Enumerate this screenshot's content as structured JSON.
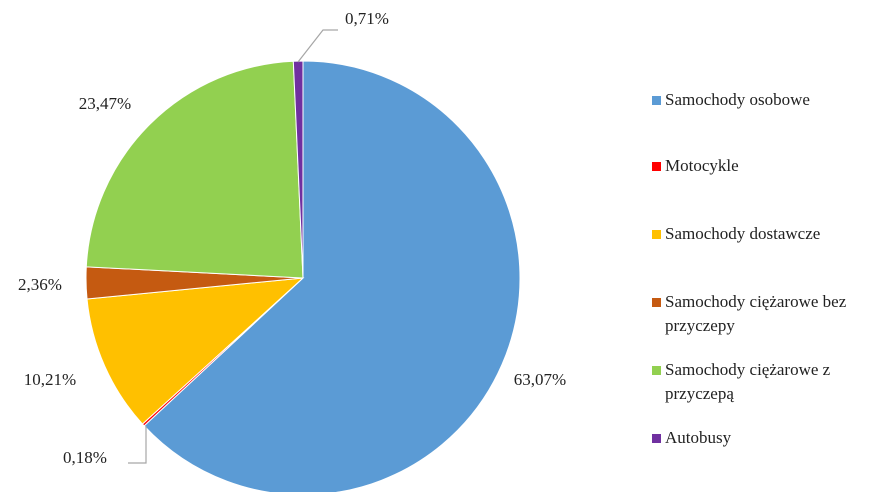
{
  "chart_data": {
    "type": "pie",
    "categories": [
      "Samochody osobowe",
      "Motocykle",
      "Samochody dostawcze",
      "Samochody ciężarowe bez przyczepy",
      "Samochody ciężarowe z przyczepą",
      "Autobusy"
    ],
    "values": [
      63.07,
      0.18,
      10.21,
      2.36,
      23.47,
      0.71
    ],
    "value_labels": [
      "63,07%",
      "0,18%",
      "10,21%",
      "2,36%",
      "23,47%",
      "0,71%"
    ],
    "colors": [
      "#5b9bd5",
      "#ff0000",
      "#ffc000",
      "#c55a11",
      "#92d050",
      "#7030a0"
    ],
    "legend": "right"
  }
}
